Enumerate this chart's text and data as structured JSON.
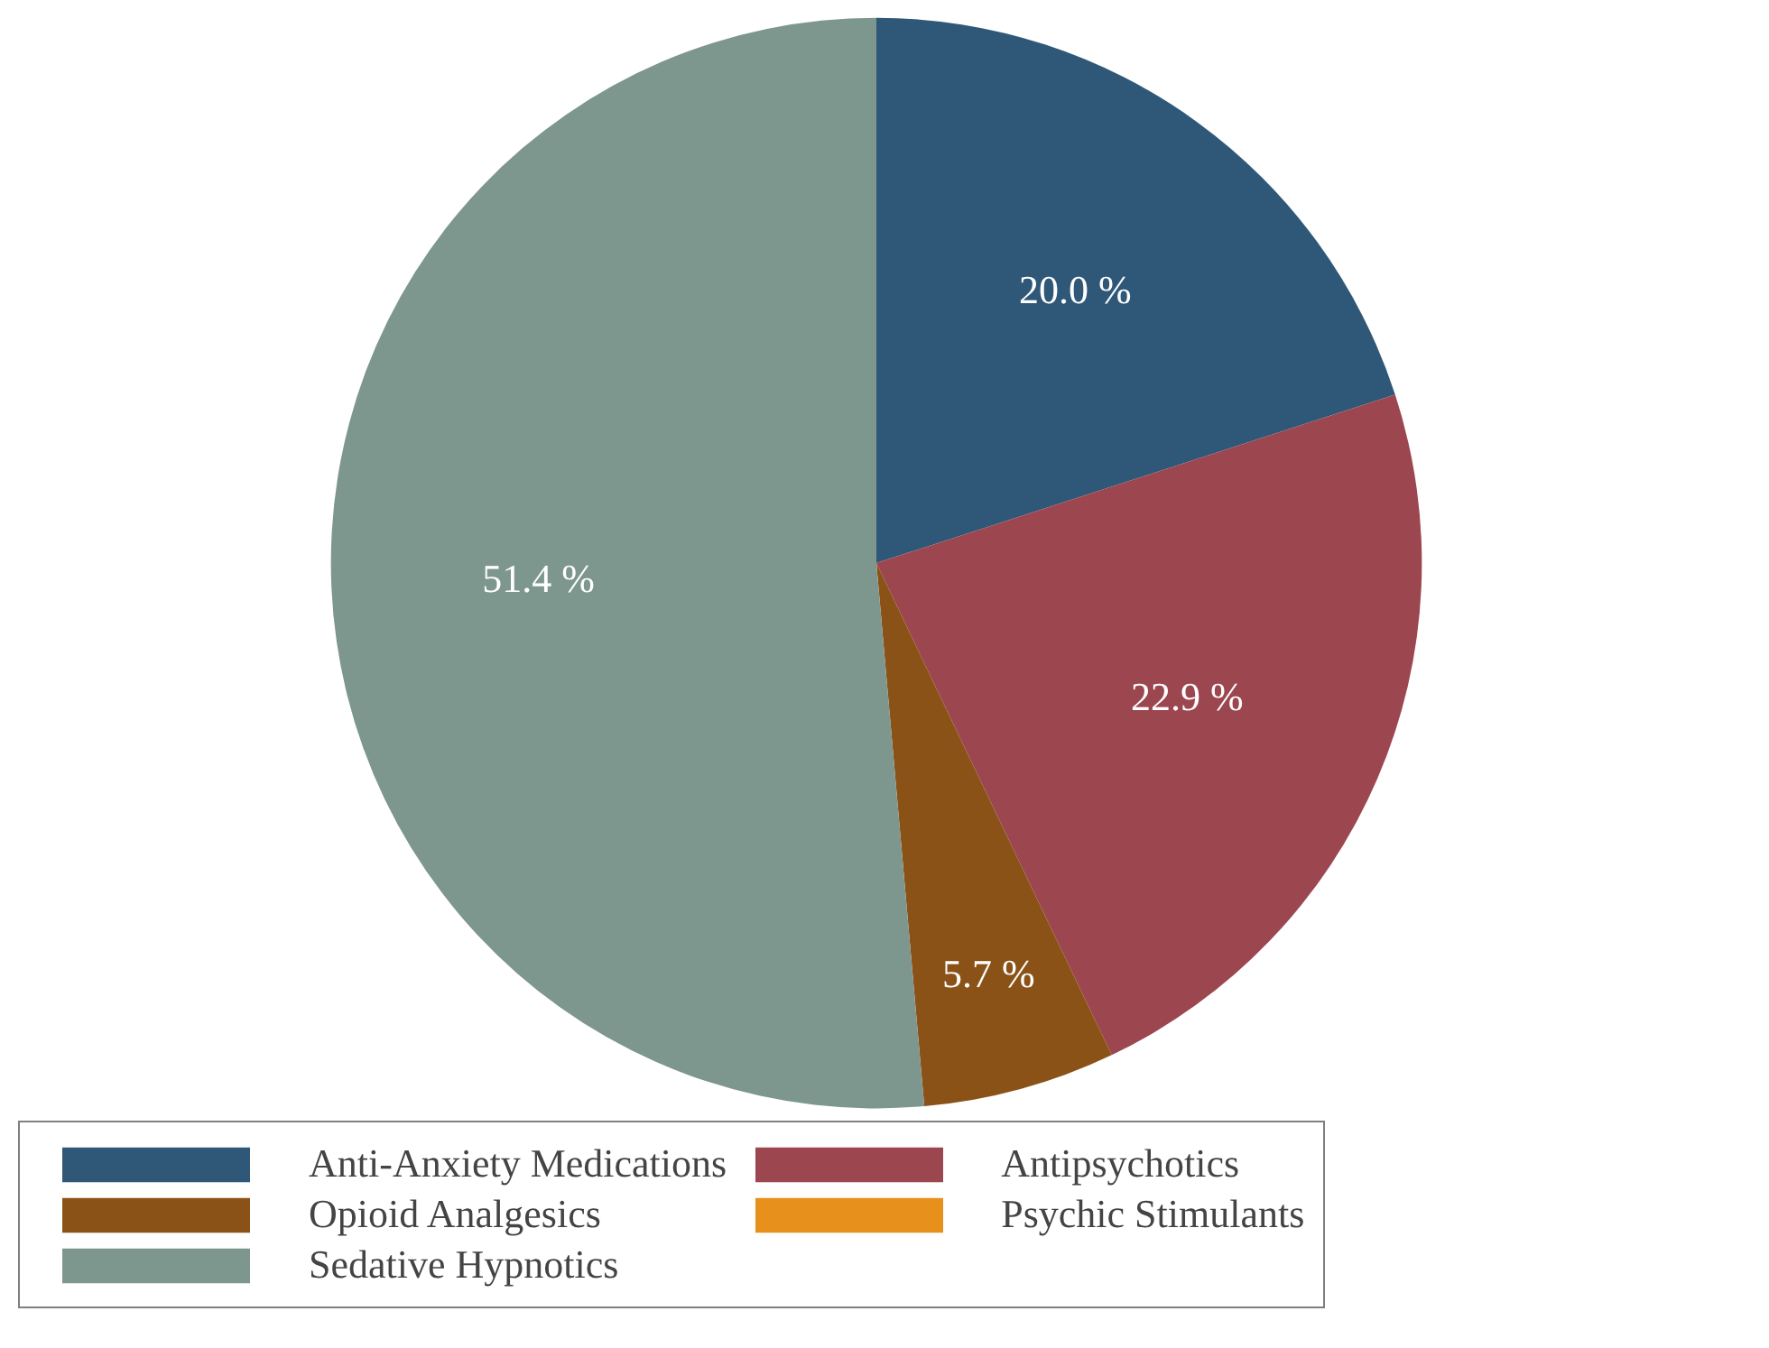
{
  "chart_data": {
    "type": "pie",
    "categories": [
      "Anti-Anxiety Medications",
      "Antipsychotics",
      "Opioid Analgesics",
      "Psychic Stimulants",
      "Sedative Hypnotics"
    ],
    "values": [
      20.0,
      22.9,
      5.7,
      0,
      51.4
    ],
    "colors": [
      "#2f5878",
      "#9c4650",
      "#8b5218",
      "#e8901c",
      "#7e978e"
    ],
    "value_labels": [
      "20.0 %",
      "22.9 %",
      "5.7 %",
      null,
      "51.4 %"
    ],
    "legend": "bottom"
  }
}
